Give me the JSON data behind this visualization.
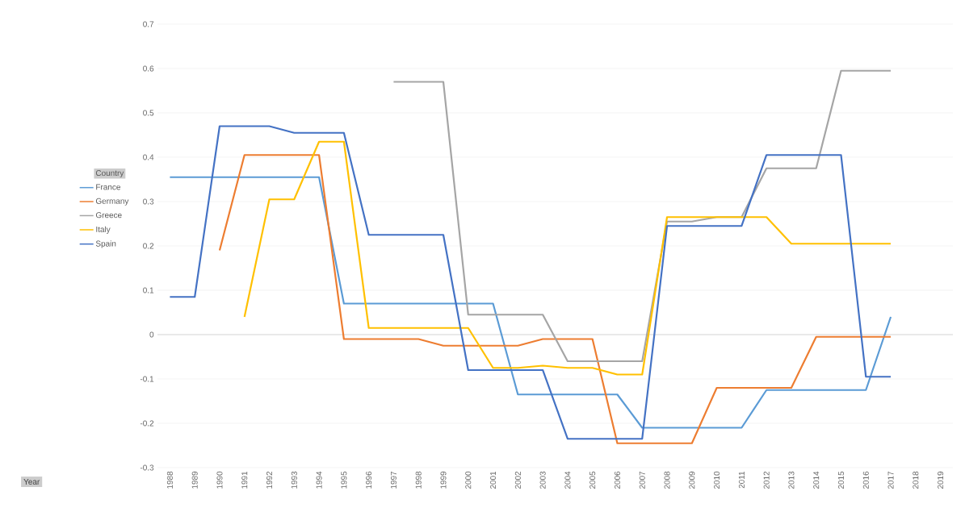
{
  "chart_data": {
    "type": "line",
    "annotations": [
      "Year"
    ],
    "legend_title": "Country",
    "legend": "left",
    "grid": "y",
    "line_style": "solid",
    "marker": "none",
    "categories": [
      "1988",
      "1989",
      "1990",
      "1991",
      "1992",
      "1993",
      "1994",
      "1995",
      "1996",
      "1997",
      "1998",
      "1999",
      "2000",
      "2001",
      "2002",
      "2003",
      "2004",
      "2005",
      "2006",
      "2007",
      "2008",
      "2009",
      "2010",
      "2011",
      "2012",
      "2013",
      "2014",
      "2015",
      "2016",
      "2017",
      "2018",
      "2019"
    ],
    "ylim": [
      -0.3,
      0.7
    ],
    "yticks": [
      -0.3,
      -0.2,
      -0.1,
      0,
      0.1,
      0.2,
      0.3,
      0.4,
      0.5,
      0.6,
      0.7
    ],
    "series": [
      {
        "name": "France",
        "color": "#5b9bd5",
        "values": [
          0.355,
          0.355,
          0.355,
          0.355,
          0.355,
          0.355,
          0.355,
          0.07,
          0.07,
          0.07,
          0.07,
          0.07,
          0.07,
          0.07,
          -0.135,
          -0.135,
          -0.135,
          -0.135,
          -0.135,
          -0.21,
          -0.21,
          -0.21,
          -0.21,
          -0.21,
          -0.125,
          -0.125,
          -0.125,
          -0.125,
          -0.125,
          0.04,
          null,
          null
        ]
      },
      {
        "name": "Germany",
        "color": "#ed7d31",
        "values": [
          null,
          null,
          0.19,
          0.405,
          0.405,
          0.405,
          0.405,
          -0.01,
          -0.01,
          -0.01,
          -0.01,
          -0.025,
          -0.025,
          -0.025,
          -0.025,
          -0.01,
          -0.01,
          -0.01,
          -0.245,
          -0.245,
          -0.245,
          -0.245,
          -0.12,
          -0.12,
          -0.12,
          -0.12,
          -0.005,
          -0.005,
          -0.005,
          -0.005,
          null,
          null
        ]
      },
      {
        "name": "Greece",
        "color": "#a5a5a5",
        "values": [
          null,
          null,
          null,
          null,
          null,
          null,
          null,
          null,
          null,
          0.57,
          0.57,
          0.57,
          0.045,
          0.045,
          0.045,
          0.045,
          -0.06,
          -0.06,
          -0.06,
          -0.06,
          0.255,
          0.255,
          0.265,
          0.265,
          0.375,
          0.375,
          0.375,
          0.595,
          0.595,
          0.595,
          null,
          null
        ]
      },
      {
        "name": "Italy",
        "color": "#ffc000",
        "values": [
          null,
          null,
          null,
          0.04,
          0.305,
          0.305,
          0.435,
          0.435,
          0.015,
          0.015,
          0.015,
          0.015,
          0.015,
          -0.075,
          -0.075,
          -0.07,
          -0.075,
          -0.075,
          -0.09,
          -0.09,
          0.265,
          0.265,
          0.265,
          0.265,
          0.265,
          0.205,
          0.205,
          0.205,
          0.205,
          0.205,
          null,
          null
        ]
      },
      {
        "name": "Spain",
        "color": "#4472c4",
        "values": [
          0.085,
          0.085,
          0.47,
          0.47,
          0.47,
          0.455,
          0.455,
          0.455,
          0.225,
          0.225,
          0.225,
          0.225,
          -0.08,
          -0.08,
          -0.08,
          -0.08,
          -0.235,
          -0.235,
          -0.235,
          -0.235,
          0.245,
          0.245,
          0.245,
          0.245,
          0.405,
          0.405,
          0.405,
          0.405,
          -0.095,
          -0.095,
          null,
          null
        ]
      }
    ]
  }
}
